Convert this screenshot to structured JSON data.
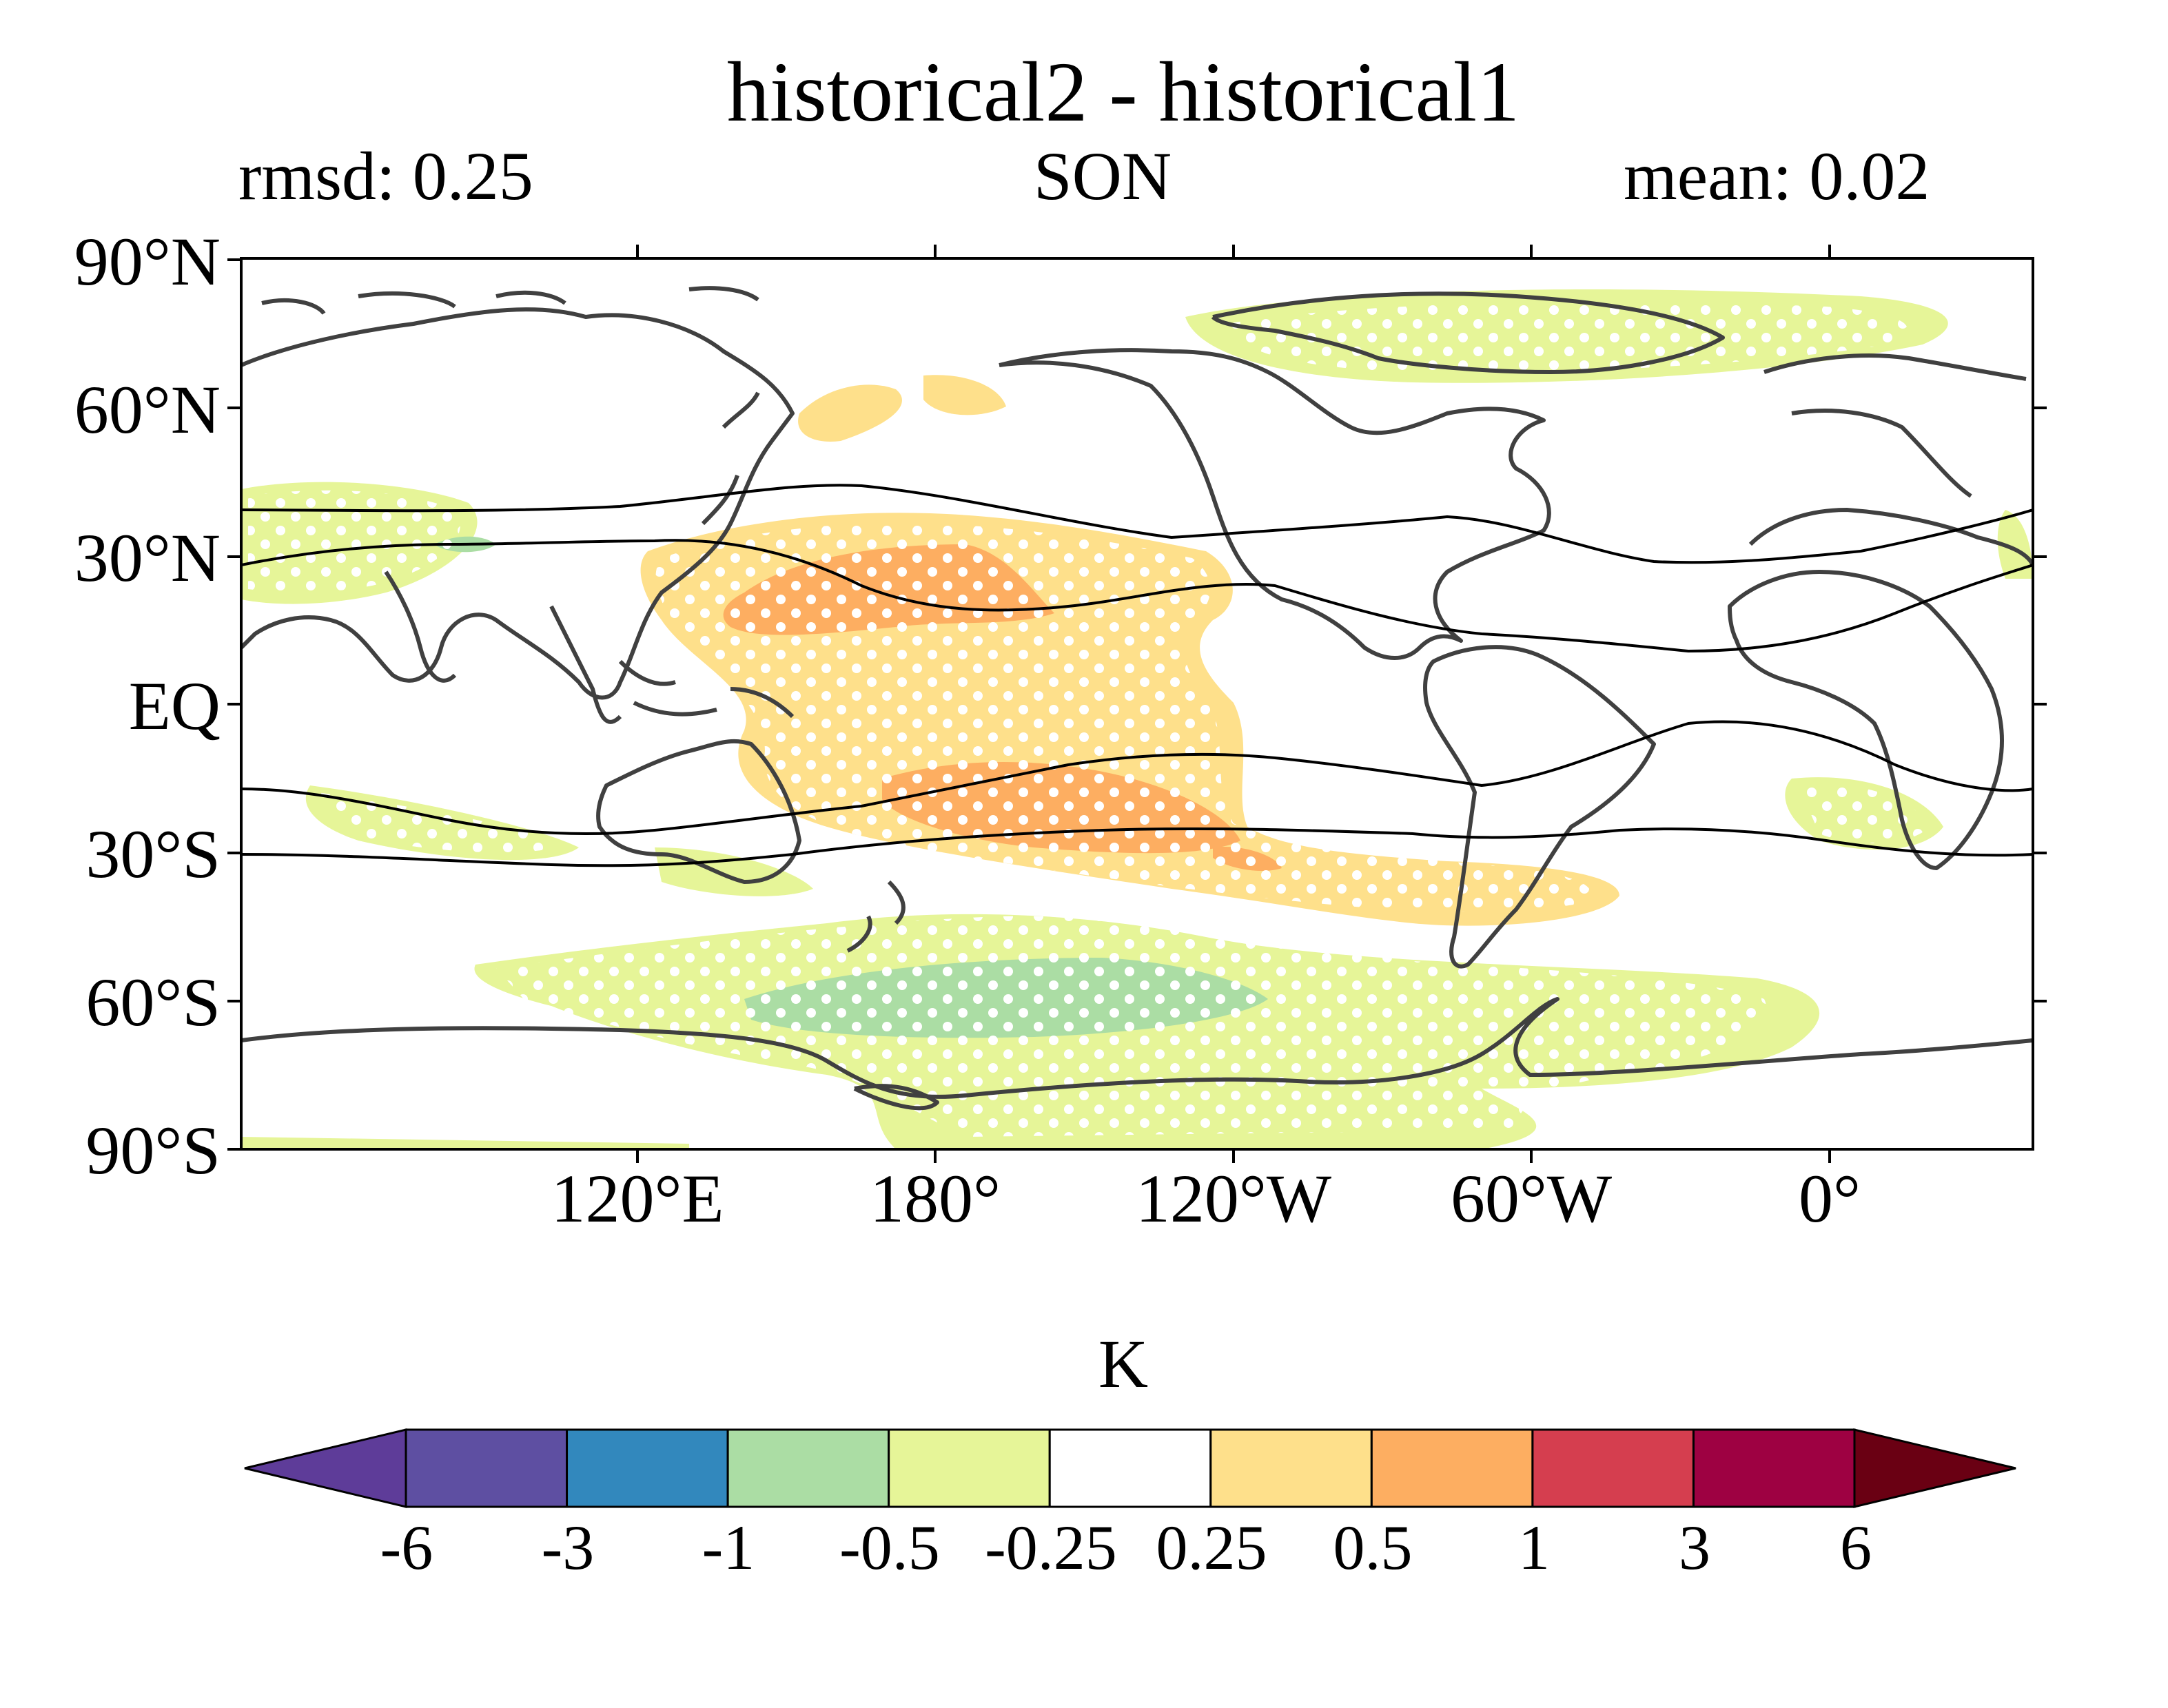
{
  "map": {
    "title": "historical2 - historical1",
    "left_label": "rmsd: 0.25",
    "center_label": "SON",
    "right_label": "mean: 0.02",
    "lat_ticks": [
      "90°N",
      "60°N",
      "30°N",
      "EQ",
      "30°S",
      "60°S",
      "90°S"
    ],
    "lon_ticks": [
      "120°E",
      "180°",
      "120°W",
      "60°W",
      "0°"
    ],
    "stipple_color": "#ffffff",
    "coastline_color": "#404040"
  },
  "colorbar": {
    "units": "K",
    "levels": [
      "-6",
      "-3",
      "-1",
      "-0.5",
      "-0.25",
      "0.25",
      "0.5",
      "1",
      "3",
      "6"
    ],
    "colors": [
      "#5e3c99",
      "#5e4fa2",
      "#3288bd",
      "#abdda4",
      "#e6f598",
      "#ffffff",
      "#fee08b",
      "#fdae61",
      "#d53e4f",
      "#9e0142",
      "#6a0013"
    ]
  }
}
